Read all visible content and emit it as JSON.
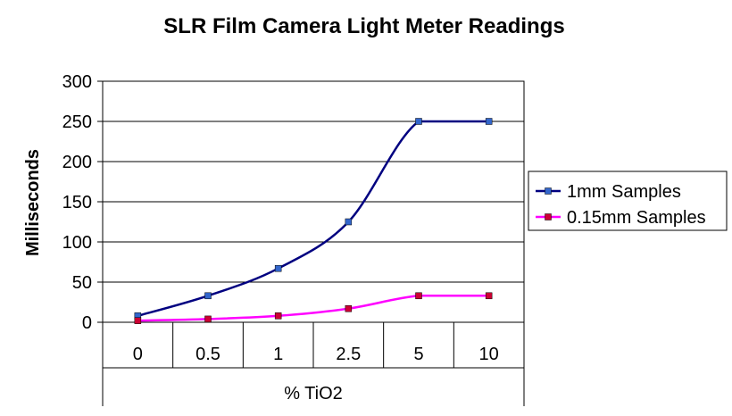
{
  "chart_data": {
    "type": "line",
    "title": "SLR Film Camera Light Meter Readings",
    "xlabel": "% TiO2",
    "ylabel": "Milliseconds",
    "categories": [
      "0",
      "0.5",
      "1",
      "2.5",
      "5",
      "10"
    ],
    "ylim": [
      0,
      300
    ],
    "yticks": [
      0,
      50,
      100,
      150,
      200,
      250,
      300
    ],
    "grid": true,
    "legend_position": "right",
    "series": [
      {
        "name": "1mm Samples",
        "color": "#000080",
        "marker_color": "#3366cc",
        "values": [
          8,
          33,
          67,
          125,
          250,
          250
        ]
      },
      {
        "name": "0.15mm Samples",
        "color": "#ff00ff",
        "marker_color": "#cc0033",
        "values": [
          2,
          4,
          8,
          17,
          33,
          33
        ]
      }
    ]
  }
}
